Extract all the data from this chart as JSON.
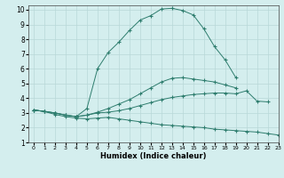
{
  "xlabel": "Humidex (Indice chaleur)",
  "ylabel": "",
  "x_values": [
    0,
    1,
    2,
    3,
    4,
    5,
    6,
    7,
    8,
    9,
    10,
    11,
    12,
    13,
    14,
    15,
    16,
    17,
    18,
    19,
    20,
    21,
    22,
    23
  ],
  "line1_y": [
    3.2,
    3.1,
    2.9,
    2.75,
    2.65,
    2.6,
    2.65,
    2.7,
    2.6,
    2.5,
    2.4,
    2.3,
    2.2,
    2.15,
    2.1,
    2.05,
    2.0,
    1.9,
    1.85,
    1.8,
    1.75,
    1.7,
    1.6,
    1.5
  ],
  "line2_y": [
    3.2,
    3.1,
    3.0,
    2.85,
    2.75,
    2.85,
    3.0,
    3.05,
    3.15,
    3.3,
    3.5,
    3.7,
    3.9,
    4.05,
    4.15,
    4.25,
    4.3,
    4.35,
    4.35,
    4.3,
    4.5,
    3.8,
    3.75,
    null
  ],
  "line3_y": [
    3.2,
    3.1,
    3.0,
    2.85,
    2.75,
    2.85,
    3.05,
    3.3,
    3.6,
    3.9,
    4.3,
    4.7,
    5.1,
    5.35,
    5.4,
    5.3,
    5.2,
    5.1,
    4.9,
    4.7,
    null,
    null,
    null,
    null
  ],
  "line4_y": [
    3.2,
    3.1,
    3.0,
    2.85,
    2.75,
    3.3,
    6.0,
    7.1,
    7.8,
    8.6,
    9.3,
    9.6,
    10.05,
    10.1,
    9.95,
    9.65,
    8.7,
    7.5,
    6.6,
    5.4,
    null,
    null,
    null,
    null
  ],
  "line_color": "#2e7d6e",
  "bg_color": "#d4eeee",
  "grid_color": "#b8d8d8",
  "xlim": [
    -0.5,
    23
  ],
  "ylim": [
    1,
    10.3
  ],
  "yticks": [
    1,
    2,
    3,
    4,
    5,
    6,
    7,
    8,
    9,
    10
  ],
  "xticks": [
    0,
    1,
    2,
    3,
    4,
    5,
    6,
    7,
    8,
    9,
    10,
    11,
    12,
    13,
    14,
    15,
    16,
    17,
    18,
    19,
    20,
    21,
    22,
    23
  ]
}
